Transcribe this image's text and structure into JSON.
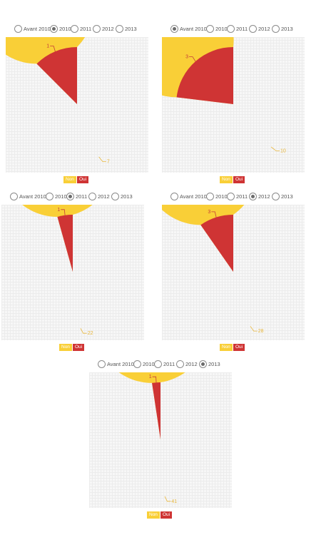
{
  "radio_options": [
    "Avant 2010",
    "2010",
    "2011",
    "2012",
    "2013"
  ],
  "colors": {
    "non": "#f9cf37",
    "oui": "#cf3434",
    "non_label": "#e8b63a",
    "oui_label": "#c43a3a"
  },
  "legend": {
    "non": "Non",
    "oui": "Oui"
  },
  "panels": [
    {
      "selected": "2010",
      "radios": [
        "Avant 2010",
        "2010",
        "2011",
        "2012",
        "2013"
      ],
      "legend": {
        "non": "Non",
        "oui": "Oui"
      }
    },
    {
      "selected": "Avant 2010",
      "radios": [
        "Avant 2010",
        "2010",
        "2011",
        "2012",
        "2013"
      ],
      "legend": {
        "non": "Non",
        "oui": "Oui"
      }
    },
    {
      "selected": "2011",
      "radios": [
        "Avant 2010",
        "2010",
        "2011",
        "2012",
        "2013"
      ],
      "legend": {
        "non": "Non",
        "oui": "Oui"
      }
    },
    {
      "selected": "2012",
      "radios": [
        "Avant 2010",
        "2010",
        "2011",
        "2012",
        "2013"
      ],
      "legend": {
        "non": "Non",
        "oui": "Oui"
      }
    },
    {
      "selected": "2013",
      "radios": [
        "Avant 2010",
        "2010",
        "2011",
        "2012",
        "2013"
      ],
      "legend": {
        "non": "Non",
        "oui": "Oui"
      }
    }
  ],
  "chart_data": [
    {
      "type": "pie",
      "categories": [
        "Non",
        "Oui"
      ],
      "values": [
        7,
        1
      ],
      "selected_year": "2010"
    },
    {
      "type": "pie",
      "categories": [
        "Non",
        "Oui"
      ],
      "values": [
        10,
        3
      ],
      "selected_year": "Avant 2010"
    },
    {
      "type": "pie",
      "categories": [
        "Non",
        "Oui"
      ],
      "values": [
        22,
        1
      ],
      "selected_year": "2011"
    },
    {
      "type": "pie",
      "categories": [
        "Non",
        "Oui"
      ],
      "values": [
        28,
        3
      ],
      "selected_year": "2012"
    },
    {
      "type": "pie",
      "categories": [
        "Non",
        "Oui"
      ],
      "values": [
        41,
        1
      ],
      "selected_year": "2013"
    }
  ]
}
